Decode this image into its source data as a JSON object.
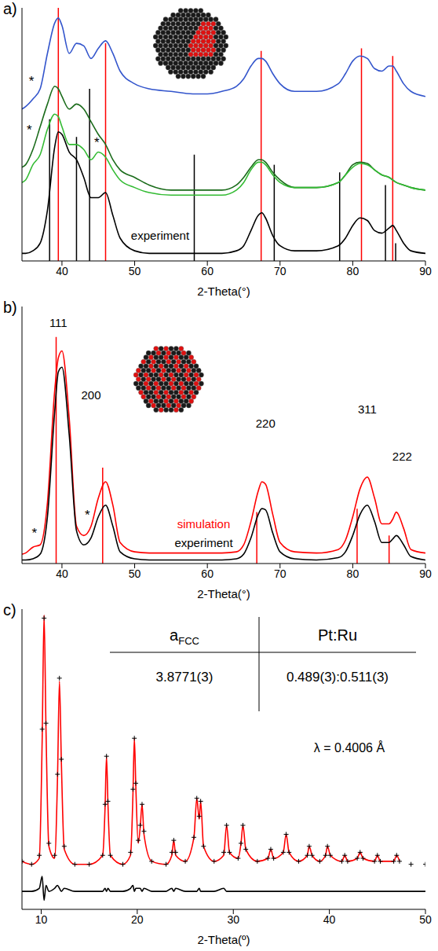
{
  "chart_data": [
    {
      "panel": "a)",
      "type": "line",
      "x_label": "2-Theta(°)",
      "xlim": [
        34.5,
        90
      ],
      "xticks": [
        40,
        50,
        60,
        70,
        80,
        90
      ],
      "ylim": [
        0,
        100
      ],
      "tick_labels": "x",
      "grid": false,
      "x": [
        34.5,
        35,
        36,
        37,
        38,
        39,
        39.5,
        40,
        41,
        42,
        43,
        44,
        45,
        46,
        47,
        48,
        50,
        52,
        55,
        58,
        60,
        62,
        64,
        65,
        66,
        67,
        67.5,
        68,
        69,
        70,
        72,
        75,
        78,
        79,
        80,
        81,
        82,
        83,
        84,
        85,
        85.5,
        86,
        87,
        88,
        90
      ],
      "series": [
        {
          "color": "#3355cc",
          "line_style": "solid",
          "values": [
            60,
            61,
            64,
            68,
            82,
            94,
            96,
            93,
            82,
            86,
            85,
            80,
            84,
            87,
            82,
            75,
            70,
            68,
            67,
            66,
            66,
            67,
            69,
            72,
            77,
            80,
            80,
            79,
            74,
            70,
            67,
            67,
            70,
            74,
            79,
            81,
            80,
            76,
            75,
            77,
            77,
            75,
            70,
            67,
            65
          ]
        },
        {
          "color": "#1a6b1a",
          "line_style": "solid",
          "values": [
            37,
            38,
            44,
            53,
            62,
            69,
            68,
            65,
            60,
            62,
            60,
            55,
            50,
            46,
            40,
            36,
            33,
            30,
            28,
            28,
            28,
            28,
            30,
            33,
            37,
            40,
            40,
            39,
            35,
            32,
            29,
            29,
            31,
            34,
            38,
            39,
            38.5,
            36,
            34,
            33,
            32,
            31,
            30,
            29,
            28
          ]
        },
        {
          "color": "#33bb33",
          "line_style": "solid",
          "values": [
            31,
            32,
            38,
            42,
            52,
            58,
            57,
            53,
            46,
            46,
            44,
            40,
            43,
            41,
            36,
            32,
            29,
            27,
            26,
            26,
            26,
            26,
            28,
            31,
            36,
            39,
            39,
            38,
            34,
            31,
            29,
            29,
            31,
            34,
            37,
            38.5,
            38,
            36,
            34,
            33,
            32,
            31,
            30,
            29,
            28
          ]
        },
        {
          "color": "#000000",
          "line_style": "solid",
          "values": [
            3,
            3,
            4,
            7,
            20,
            45,
            51,
            50,
            43,
            40,
            33,
            25,
            25,
            27,
            18,
            9,
            4,
            3,
            3,
            3,
            3,
            3,
            4,
            6,
            12,
            18,
            19,
            17,
            10,
            6,
            4,
            4,
            6,
            9,
            14,
            17,
            16,
            12,
            11,
            13,
            14,
            12,
            7,
            4,
            3
          ]
        }
      ],
      "reference_lines": [
        {
          "color": "#ff0000",
          "x": [
            39.5,
            46,
            67.4,
            81.2,
            85.5
          ],
          "heights": [
            100,
            86,
            83,
            84,
            81
          ]
        },
        {
          "color": "#000000",
          "x": [
            38.3,
            42,
            43.8,
            58.2,
            69.2,
            78.2,
            84.5,
            85.9
          ],
          "heights": [
            56,
            49,
            68,
            42,
            38,
            35,
            30,
            7
          ]
        }
      ],
      "annotations": [
        {
          "text": "*",
          "x": 35.8,
          "y": 71
        },
        {
          "text": "*",
          "x": 35.5,
          "y": 52
        },
        {
          "text": "*",
          "x": 44.8,
          "y": 47
        },
        {
          "text": "experiment",
          "x": 53.5,
          "y": 10
        }
      ]
    },
    {
      "panel": "b)",
      "type": "line",
      "x_label": "2-Theta(°)",
      "xlim": [
        34.5,
        90
      ],
      "xticks": [
        40,
        50,
        60,
        70,
        80,
        90
      ],
      "ylim": [
        0,
        110
      ],
      "tick_labels": "x",
      "grid": false,
      "x": [
        34.5,
        35,
        36,
        37,
        38,
        39,
        39.5,
        40,
        41,
        42,
        43,
        44,
        45,
        46,
        47,
        48,
        50,
        52,
        55,
        58,
        60,
        62,
        64,
        65,
        66,
        67,
        67.5,
        68,
        69,
        70,
        72,
        75,
        78,
        79,
        80,
        81,
        82,
        83,
        84,
        85,
        85.5,
        86,
        87,
        88,
        90
      ],
      "series": [
        {
          "color": "#ff0000",
          "line_style": "solid",
          "values": [
            4,
            4.5,
            7,
            8,
            26,
            74,
            88,
            91,
            62,
            16,
            12,
            16,
            28,
            35,
            25,
            9,
            5,
            4.5,
            4.5,
            4.5,
            4.5,
            4.5,
            5,
            8,
            18,
            31,
            35,
            34,
            21,
            9,
            5,
            4.5,
            6,
            10,
            20,
            32,
            37,
            28,
            17,
            17,
            19,
            22,
            15,
            6,
            4.5
          ]
        },
        {
          "color": "#000000",
          "line_style": "solid",
          "values": [
            1.5,
            1.5,
            2,
            4,
            20,
            65,
            82,
            84,
            55,
            14,
            8,
            11,
            20,
            25,
            16,
            5,
            2,
            1.5,
            1.5,
            1.5,
            1.5,
            1.5,
            2,
            4,
            11,
            21,
            23.5,
            23,
            13,
            5,
            2,
            1.5,
            2.5,
            5,
            12,
            21,
            25,
            18,
            9,
            9,
            10.5,
            12,
            8,
            3,
            1.5
          ]
        }
      ],
      "reference_lines": [
        {
          "color": "#ff0000",
          "x": [
            39.2,
            45.6,
            66.8,
            80.6,
            85
          ],
          "heights": [
            97,
            41,
            22,
            23.5,
            12
          ]
        }
      ],
      "annotations": [
        {
          "text": "111",
          "x": 39.5,
          "y": 103
        },
        {
          "text": "200",
          "x": 44,
          "y": 72
        },
        {
          "text": "220",
          "x": 68,
          "y": 60
        },
        {
          "text": "311",
          "x": 82,
          "y": 66
        },
        {
          "text": "222",
          "x": 86.8,
          "y": 46
        },
        {
          "text": "simulation",
          "x": 59.5,
          "y": 17,
          "color": "#ff0000"
        },
        {
          "text": "experiment",
          "x": 59.5,
          "y": 9
        },
        {
          "text": "*",
          "x": 36.2,
          "y": 13
        },
        {
          "text": "*",
          "x": 43.5,
          "y": 21
        }
      ]
    },
    {
      "panel": "c)",
      "type": "line",
      "x_label": "2-Theta(º)",
      "xlim": [
        8,
        50
      ],
      "xticks": [
        10,
        20,
        30,
        40,
        50
      ],
      "ylim": [
        0,
        100
      ],
      "tick_labels": "x",
      "grid": false,
      "x": [
        8,
        9,
        9.8,
        10.1,
        10.3,
        10.5,
        10.8,
        11.4,
        11.7,
        11.9,
        12.1,
        12.4,
        13.5,
        15,
        16.4,
        16.65,
        16.8,
        16.95,
        17.2,
        18.5,
        19.3,
        19.55,
        19.7,
        19.85,
        20.1,
        20.3,
        20.5,
        20.7,
        21.5,
        23,
        23.6,
        23.8,
        24,
        25,
        25.9,
        26.2,
        26.45,
        26.6,
        26.9,
        28,
        29,
        29.3,
        29.6,
        30.5,
        30.8,
        31,
        31.3,
        32.5,
        33.6,
        33.9,
        34.2,
        35.2,
        35.5,
        35.8,
        36.8,
        37.7,
        37.9,
        38.2,
        39,
        39.6,
        39.8,
        40.1,
        41.3,
        41.6,
        41.9,
        42.9,
        43.2,
        43.5,
        44.7,
        45,
        45.3,
        46.7,
        47,
        47.3,
        48.5,
        50
      ],
      "series": [
        {
          "type": "scatter",
          "marker": "cross",
          "color": "#000000",
          "values": [
            16,
            15,
            18,
            60,
            97,
            62,
            22,
            18,
            45,
            77,
            50,
            21,
            15,
            15,
            18,
            35,
            51,
            36,
            18,
            15,
            19,
            40,
            57,
            42,
            23,
            28,
            35,
            26,
            16,
            15,
            19,
            23,
            19,
            16,
            24,
            37,
            31,
            36,
            21,
            16,
            19,
            28,
            19,
            17,
            22,
            28,
            20,
            16,
            17,
            20,
            17,
            19,
            25,
            19,
            16,
            18,
            21,
            18,
            16,
            18,
            21,
            18,
            16,
            18,
            16,
            17,
            19,
            17,
            16,
            18,
            16,
            16,
            18,
            16,
            15,
            15
          ]
        },
        {
          "type": "line",
          "line_style": "solid",
          "color": "#ff0000",
          "values": [
            16,
            15,
            17,
            56,
            98,
            60,
            21,
            17,
            44,
            76,
            49,
            20,
            15,
            15,
            18,
            34,
            51,
            35,
            18,
            15,
            18,
            38,
            57,
            41,
            22,
            27,
            35,
            25,
            16,
            15,
            18,
            23,
            18,
            16,
            24,
            37,
            30,
            36,
            21,
            16,
            18,
            28,
            19,
            17,
            22,
            28,
            20,
            16,
            17,
            20,
            17,
            19,
            25,
            19,
            16,
            18,
            21,
            18,
            16,
            18,
            21,
            18,
            16,
            18,
            16,
            17,
            19,
            17,
            16,
            18,
            16,
            16,
            18,
            16,
            null,
            null
          ]
        },
        {
          "type": "line",
          "line_style": "solid",
          "color": "#000000",
          "values": [
            6,
            6,
            7,
            11,
            3,
            8,
            6,
            7,
            8,
            7,
            6,
            7,
            6,
            6,
            6,
            7,
            6,
            7,
            6,
            6,
            7,
            8,
            6,
            7,
            7,
            7,
            6,
            7,
            6,
            6,
            7,
            6,
            7,
            6,
            6,
            6,
            7,
            6,
            6,
            6,
            7,
            6,
            6,
            6,
            6,
            6,
            6,
            6,
            6,
            6,
            6,
            6,
            6,
            6,
            6,
            6,
            6,
            6,
            6,
            6,
            6,
            6,
            6,
            6,
            6,
            6,
            6,
            6,
            6,
            6,
            6,
            6,
            6,
            6,
            6,
            6
          ]
        }
      ],
      "table": {
        "header": [
          {
            "text": "a",
            "sub": "FCC"
          },
          {
            "text": "Pt:Ru"
          }
        ],
        "row": [
          "3.8771(3)",
          "0.489(3):0.511(3)"
        ]
      },
      "note": "λ = 0.4006 Å"
    }
  ]
}
